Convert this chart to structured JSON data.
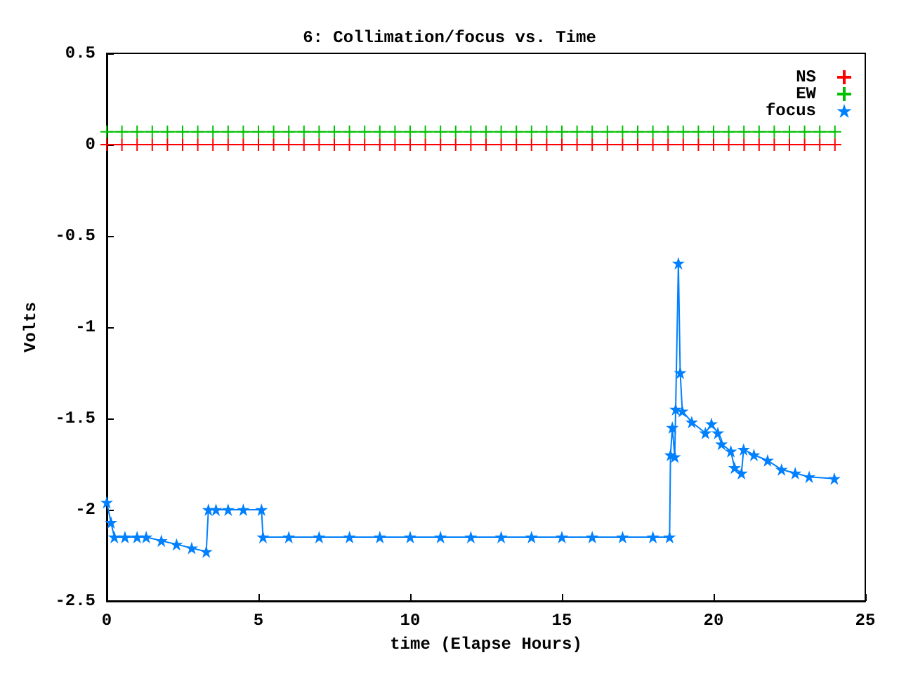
{
  "chart_data": {
    "type": "line",
    "title": "6: Collimation/focus vs. Time",
    "xlabel": "time (Elapse Hours)",
    "ylabel": "Volts",
    "xlim": [
      0,
      25
    ],
    "xticks": [
      0,
      5,
      10,
      15,
      20,
      25
    ],
    "ylim": [
      -2.5,
      0.5
    ],
    "yticks": [
      -2.5,
      -2,
      -1.5,
      -1,
      -0.5,
      0,
      0.5
    ],
    "grid": false,
    "legend": "top right",
    "series": [
      {
        "name": "NS",
        "color": "#ff0000",
        "marker": "cross",
        "x": [
          0,
          0.5,
          1,
          1.5,
          2,
          2.5,
          3,
          3.5,
          4,
          4.5,
          5,
          5.5,
          6,
          6.5,
          7,
          7.5,
          8,
          8.5,
          9,
          9.5,
          10,
          10.5,
          11,
          11.5,
          12,
          12.5,
          13,
          13.5,
          14,
          14.5,
          15,
          15.5,
          16,
          16.5,
          17,
          17.5,
          18,
          18.5,
          19,
          19.5,
          20,
          20.5,
          21,
          21.5,
          22,
          22.5,
          23,
          23.5,
          24
        ],
        "values": [
          0,
          0,
          0,
          0,
          0,
          0,
          0,
          0,
          0,
          0,
          0,
          0,
          0,
          0,
          0,
          0,
          0,
          0,
          0,
          0,
          0,
          0,
          0,
          0,
          0,
          0,
          0,
          0,
          0,
          0,
          0,
          0,
          0,
          0,
          0,
          0,
          0,
          0,
          0,
          0,
          0,
          0,
          0,
          0,
          0,
          0,
          0,
          0,
          0
        ]
      },
      {
        "name": "EW",
        "color": "#00c000",
        "marker": "cross",
        "x": [
          0,
          0.5,
          1,
          1.5,
          2,
          2.5,
          3,
          3.5,
          4,
          4.5,
          5,
          5.5,
          6,
          6.5,
          7,
          7.5,
          8,
          8.5,
          9,
          9.5,
          10,
          10.5,
          11,
          11.5,
          12,
          12.5,
          13,
          13.5,
          14,
          14.5,
          15,
          15.5,
          16,
          16.5,
          17,
          17.5,
          18,
          18.5,
          19,
          19.5,
          20,
          20.5,
          21,
          21.5,
          22,
          22.5,
          23,
          23.5,
          24
        ],
        "values": [
          0.07,
          0.07,
          0.07,
          0.07,
          0.07,
          0.07,
          0.07,
          0.07,
          0.07,
          0.07,
          0.07,
          0.07,
          0.07,
          0.07,
          0.07,
          0.07,
          0.07,
          0.07,
          0.07,
          0.07,
          0.07,
          0.07,
          0.07,
          0.07,
          0.07,
          0.07,
          0.07,
          0.07,
          0.07,
          0.07,
          0.07,
          0.07,
          0.07,
          0.07,
          0.07,
          0.07,
          0.07,
          0.07,
          0.07,
          0.07,
          0.07,
          0.07,
          0.07,
          0.07,
          0.07,
          0.07,
          0.07,
          0.07,
          0.07
        ]
      },
      {
        "name": "focus",
        "color": "#0080ff",
        "marker": "star",
        "x": [
          0,
          0.14,
          0.25,
          0.6,
          1,
          1.3,
          1.8,
          2.3,
          2.8,
          3.28,
          3.35,
          3.6,
          4,
          4.5,
          5.1,
          5.15,
          6,
          7,
          8,
          9,
          10,
          11,
          12,
          13,
          14,
          15,
          16,
          17,
          18,
          18.55,
          18.58,
          18.64,
          18.72,
          18.75,
          18.84,
          18.9,
          18.97,
          19.28,
          19.73,
          19.93,
          20.14,
          20.26,
          20.57,
          20.69,
          20.92,
          20.99,
          21.33,
          21.78,
          22.24,
          22.69,
          23.15,
          23.98
        ],
        "values": [
          -1.96,
          -2.07,
          -2.15,
          -2.15,
          -2.15,
          -2.15,
          -2.17,
          -2.19,
          -2.21,
          -2.23,
          -2,
          -2,
          -2,
          -2,
          -2,
          -2.15,
          -2.15,
          -2.15,
          -2.15,
          -2.15,
          -2.15,
          -2.15,
          -2.15,
          -2.15,
          -2.15,
          -2.15,
          -2.15,
          -2.15,
          -2.15,
          -2.15,
          -1.7,
          -1.55,
          -1.71,
          -1.45,
          -0.65,
          -1.25,
          -1.46,
          -1.52,
          -1.58,
          -1.53,
          -1.58,
          -1.64,
          -1.68,
          -1.77,
          -1.8,
          -1.67,
          -1.7,
          -1.73,
          -1.78,
          -1.8,
          -1.82,
          -1.83
        ]
      }
    ]
  }
}
